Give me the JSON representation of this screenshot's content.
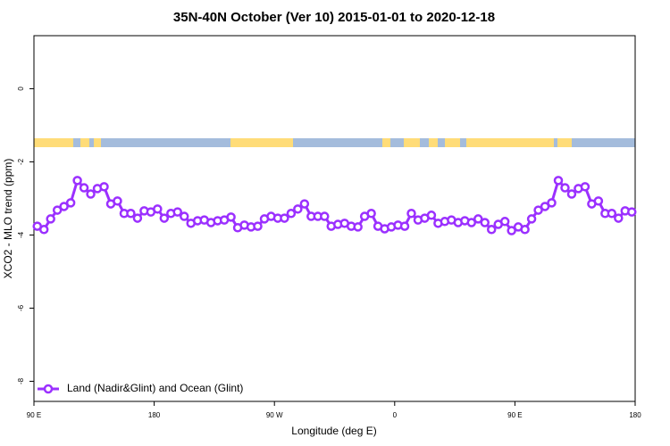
{
  "chart_data": {
    "type": "line",
    "title": "35N-40N October (Ver 10)   2015-01-01 to 2020-12-18",
    "x_label": "Longitude (deg E)",
    "y_label": "XCO2 - MLO trend (ppm)",
    "xlim": [
      90,
      540
    ],
    "xticks": [
      {
        "value": 90,
        "label": "90 E"
      },
      180,
      {
        "value": 270,
        "label": "90 W"
      },
      {
        "value": 360,
        "label": "0"
      },
      {
        "value": 450,
        "label": "90 E"
      },
      {
        "value": 540,
        "label": "180"
      }
    ],
    "ylim": [
      -8.55,
      1.45
    ],
    "yticks": [
      0,
      -2,
      -4,
      -6,
      -8
    ],
    "legend": "bottom-left",
    "x": [
      92.5,
      97.5,
      102.5,
      107.5,
      112.5,
      117.5,
      122.5,
      127.5,
      132.5,
      137.5,
      142.5,
      147.5,
      152.5,
      157.5,
      162.5,
      167.5,
      172.5,
      177.5,
      182.5,
      187.5,
      192.5,
      197.5,
      202.5,
      207.5,
      212.5,
      217.5,
      222.5,
      227.5,
      232.5,
      237.5,
      242.5,
      247.5,
      252.5,
      257.5,
      262.5,
      267.5,
      272.5,
      277.5,
      282.5,
      287.5,
      292.5,
      297.5,
      302.5,
      307.5,
      312.5,
      317.5,
      322.5,
      327.5,
      332.5,
      337.5,
      342.5,
      347.5,
      352.5,
      357.5,
      362.5,
      367.5,
      372.5,
      377.5,
      382.5,
      387.5,
      392.5,
      397.5,
      402.5,
      407.5,
      412.5,
      417.5,
      422.5,
      427.5,
      432.5,
      437.5,
      442.5,
      447.5,
      452.5,
      457.5,
      462.5,
      467.5,
      472.5,
      477.5,
      482.5,
      487.5,
      492.5,
      497.5,
      502.5,
      507.5,
      512.5,
      517.5,
      522.5,
      527.5,
      532.5,
      537.5
    ],
    "series": [
      {
        "name": "Land (Nadir&Glint) and Ocean (Glint)",
        "color": "#9b30ff",
        "values": [
          -3.76,
          -3.85,
          -3.56,
          -3.32,
          -3.22,
          -3.12,
          -2.51,
          -2.71,
          -2.88,
          -2.73,
          -2.68,
          -3.15,
          -3.07,
          -3.41,
          -3.41,
          -3.54,
          -3.34,
          -3.37,
          -3.29,
          -3.54,
          -3.41,
          -3.37,
          -3.49,
          -3.68,
          -3.61,
          -3.59,
          -3.66,
          -3.61,
          -3.59,
          -3.51,
          -3.8,
          -3.73,
          -3.78,
          -3.76,
          -3.56,
          -3.49,
          -3.54,
          -3.54,
          -3.41,
          -3.29,
          -3.15,
          -3.49,
          -3.49,
          -3.49,
          -3.76,
          -3.71,
          -3.68,
          -3.76,
          -3.78,
          -3.49,
          -3.41,
          -3.76,
          -3.83,
          -3.78,
          -3.73,
          -3.76,
          -3.41,
          -3.59,
          -3.54,
          -3.46,
          -3.68,
          -3.63,
          -3.59,
          -3.66,
          -3.61,
          -3.66,
          -3.56,
          -3.66,
          -3.85,
          -3.71,
          -3.63,
          -3.88,
          -3.78,
          -3.85,
          -3.56,
          -3.32,
          -3.22,
          -3.12,
          -2.51,
          -2.71,
          -2.88,
          -2.73,
          -2.68,
          -3.15,
          -3.07,
          -3.41,
          -3.41,
          -3.54,
          -3.34,
          -3.37
        ]
      }
    ]
  }
}
